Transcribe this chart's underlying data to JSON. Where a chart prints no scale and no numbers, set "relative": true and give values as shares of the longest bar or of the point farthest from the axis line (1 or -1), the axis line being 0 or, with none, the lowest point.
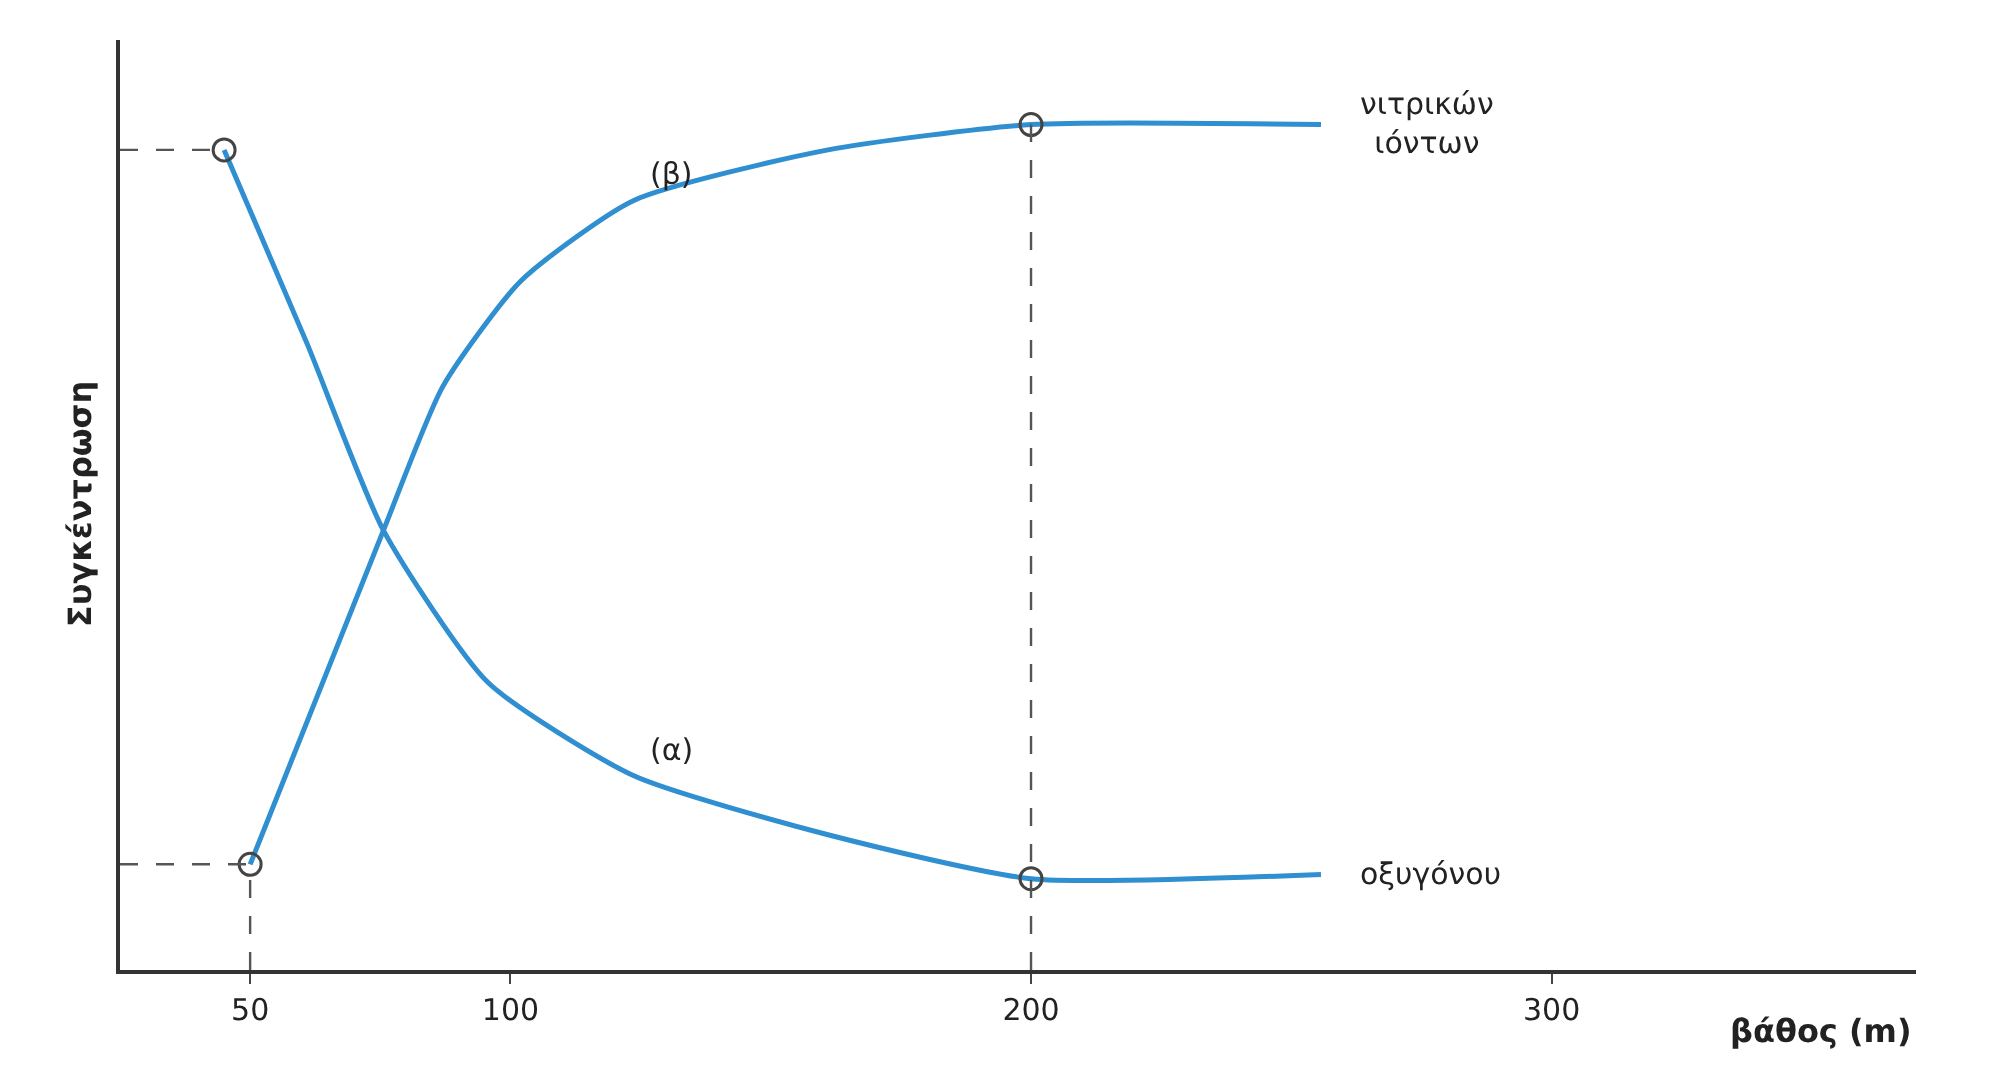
{
  "chart_data": {
    "type": "line",
    "relative": true,
    "xlabel": "βάθος (m)",
    "ylabel": "Συγκέντρωση",
    "xlim": [
      25,
      370
    ],
    "xticks": [
      50,
      100,
      200,
      300
    ],
    "line_style": "solid",
    "marker": "none",
    "series": [
      {
        "name": "νιτρικών ιόντων",
        "color": "#2f8fd0",
        "x": [
          50,
          75.6,
          87,
          102,
          123.6,
          161,
          200,
          255.7
        ],
        "values": [
          0.125,
          0.52,
          0.69,
          0.815,
          0.91,
          0.97,
          1.0,
          1.0
        ]
      },
      {
        "name": "οξυγόνου",
        "color": "#2f8fd0",
        "x": [
          45,
          61,
          75.6,
          95.7,
          123.6,
          161,
          200,
          255.7
        ],
        "values": [
          0.97,
          0.74,
          0.52,
          0.34,
          0.23,
          0.16,
          0.108,
          0.113
        ]
      },
      {
        "type": "scatter",
        "marker": "circle",
        "color": "#444444",
        "x": [
          45,
          50,
          200,
          200
        ],
        "values": [
          0.97,
          0.125,
          1.0,
          0.108
        ]
      },
      {
        "type": "line",
        "line_style": "dashed",
        "color": "#555555",
        "x": [
          25,
          45
        ],
        "values": [
          0.97,
          0.97
        ]
      },
      {
        "type": "line",
        "line_style": "dashed",
        "color": "#555555",
        "x": [
          25,
          50
        ],
        "values": [
          0.125,
          0.125
        ]
      },
      {
        "type": "line",
        "line_style": "dashed",
        "color": "#555555",
        "x": [
          50,
          50
        ],
        "values": [
          0,
          0.125
        ]
      },
      {
        "type": "line",
        "line_style": "dashed",
        "color": "#555555",
        "x": [
          200,
          200
        ],
        "values": [
          0,
          1.0
        ]
      }
    ],
    "annotations": [
      {
        "text": "(α)",
        "x": 123.6,
        "y": 0.23
      },
      {
        "text": "(β)",
        "x": 123.6,
        "y": 0.91
      }
    ]
  }
}
